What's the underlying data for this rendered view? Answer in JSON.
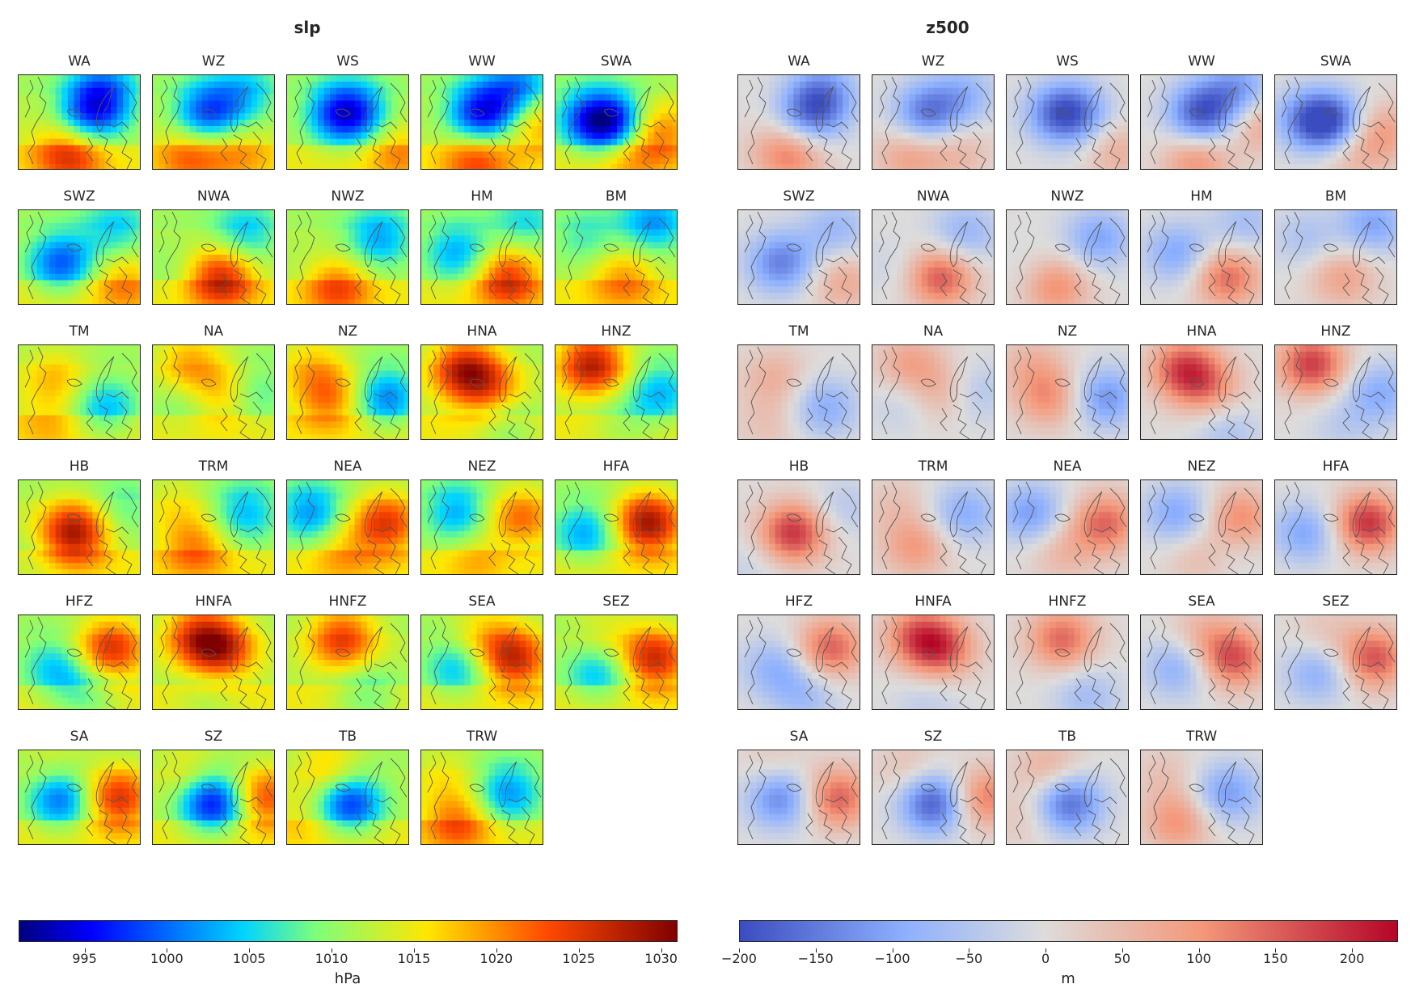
{
  "figure": {
    "left_title": "slp",
    "right_title": "z500"
  },
  "chart_data": [
    {
      "type": "heatmap",
      "title": "slp",
      "colormap": "jet",
      "colorbar": {
        "label": "hPa",
        "range": [
          991,
          1031
        ],
        "ticks": [
          995,
          1000,
          1005,
          1010,
          1015,
          1020,
          1025,
          1030
        ]
      },
      "panels": [
        "WA",
        "WZ",
        "WS",
        "WW",
        "SWA",
        "SWZ",
        "NWA",
        "NWZ",
        "HM",
        "BM",
        "TM",
        "NA",
        "NZ",
        "HNA",
        "HNZ",
        "HB",
        "TRM",
        "NEA",
        "NEZ",
        "HFA",
        "HFZ",
        "HNFA",
        "HNFZ",
        "SEA",
        "SEZ",
        "SA",
        "SZ",
        "TB",
        "TRW"
      ]
    },
    {
      "type": "heatmap",
      "title": "z500",
      "colormap": "coolwarm",
      "colorbar": {
        "label": "m",
        "range": [
          -200,
          230
        ],
        "ticks": [
          -200,
          -150,
          -100,
          -50,
          0,
          50,
          100,
          150,
          200
        ],
        "tick_labels": [
          "−200",
          "−150",
          "−100",
          "−50",
          "0",
          "50",
          "100",
          "150",
          "200"
        ]
      },
      "panels": [
        "WA",
        "WZ",
        "WS",
        "WW",
        "SWA",
        "SWZ",
        "NWA",
        "NWZ",
        "HM",
        "BM",
        "TM",
        "NA",
        "NZ",
        "HNA",
        "HNZ",
        "HB",
        "TRM",
        "NEA",
        "NEZ",
        "HFA",
        "HFZ",
        "HNFA",
        "HNFZ",
        "SEA",
        "SEZ",
        "SA",
        "SZ",
        "TB",
        "TRW"
      ]
    }
  ],
  "anomaly_patterns": {
    "WA": [
      [
        0.6,
        0.4,
        -0.8
      ],
      [
        0.7,
        0.15,
        -0.5
      ],
      [
        0.45,
        0.85,
        0.5
      ],
      [
        0.3,
        0.8,
        0.2
      ]
    ],
    "WZ": [
      [
        0.45,
        0.4,
        -0.8
      ],
      [
        0.75,
        0.2,
        -0.4
      ],
      [
        0.3,
        0.85,
        0.45
      ],
      [
        0.7,
        0.8,
        0.3
      ]
    ],
    "WS": [
      [
        0.55,
        0.4,
        -0.7
      ],
      [
        0.4,
        0.4,
        -0.5
      ],
      [
        0.9,
        0.8,
        0.35
      ]
    ],
    "WW": [
      [
        0.5,
        0.4,
        -1.0
      ],
      [
        0.8,
        0.15,
        -0.6
      ],
      [
        0.45,
        0.9,
        0.55
      ],
      [
        0.95,
        0.5,
        0.45
      ]
    ],
    "SWA": [
      [
        0.45,
        0.5,
        -1.0
      ],
      [
        0.25,
        0.45,
        -0.5
      ],
      [
        0.85,
        0.6,
        0.5
      ],
      [
        0.6,
        0.85,
        0.3
      ]
    ],
    "SWZ": [
      [
        0.35,
        0.55,
        -0.75
      ],
      [
        0.8,
        0.2,
        -0.4
      ],
      [
        0.85,
        0.75,
        0.4
      ]
    ],
    "NWA": [
      [
        0.55,
        0.7,
        0.85
      ],
      [
        0.75,
        0.25,
        -0.45
      ],
      [
        0.2,
        0.6,
        -0.15
      ]
    ],
    "NWZ": [
      [
        0.4,
        0.8,
        0.6
      ],
      [
        0.75,
        0.3,
        -0.55
      ],
      [
        0.2,
        0.65,
        -0.1
      ]
    ],
    "HM": [
      [
        0.7,
        0.7,
        0.75
      ],
      [
        0.3,
        0.45,
        -0.55
      ],
      [
        0.85,
        0.15,
        -0.35
      ]
    ],
    "BM": [
      [
        0.55,
        0.7,
        0.45
      ],
      [
        0.8,
        0.15,
        -0.55
      ],
      [
        0.25,
        0.3,
        -0.3
      ]
    ],
    "TM": [
      [
        0.3,
        0.35,
        0.35
      ],
      [
        0.7,
        0.65,
        -0.5
      ],
      [
        0.25,
        0.85,
        0.2
      ]
    ],
    "NA": [
      [
        0.3,
        0.2,
        0.45
      ],
      [
        0.6,
        0.5,
        0.45
      ],
      [
        0.8,
        0.5,
        -0.4
      ],
      [
        0.25,
        0.6,
        -0.2
      ]
    ],
    "NZ": [
      [
        0.35,
        0.55,
        0.55
      ],
      [
        0.8,
        0.55,
        -0.65
      ],
      [
        0.2,
        0.2,
        0.3
      ]
    ],
    "HNA": [
      [
        0.35,
        0.25,
        0.85
      ],
      [
        0.55,
        0.45,
        0.5
      ],
      [
        0.7,
        0.9,
        -0.3
      ]
    ],
    "HNZ": [
      [
        0.3,
        0.2,
        0.95
      ],
      [
        0.85,
        0.5,
        -0.5
      ],
      [
        0.55,
        0.85,
        -0.2
      ]
    ],
    "HB": [
      [
        0.45,
        0.55,
        1.0
      ],
      [
        0.85,
        0.3,
        -0.25
      ],
      [
        0.1,
        0.9,
        -0.15
      ]
    ],
    "TRM": [
      [
        0.75,
        0.35,
        -0.5
      ],
      [
        0.35,
        0.7,
        0.5
      ],
      [
        0.2,
        0.25,
        0.2
      ]
    ],
    "NEA": [
      [
        0.2,
        0.35,
        -0.6
      ],
      [
        0.8,
        0.45,
        0.75
      ],
      [
        0.45,
        0.75,
        0.3
      ]
    ],
    "NEZ": [
      [
        0.3,
        0.35,
        -0.55
      ],
      [
        0.8,
        0.4,
        0.6
      ],
      [
        0.5,
        0.8,
        0.35
      ],
      [
        0.65,
        0.75,
        -0.2
      ]
    ],
    "HFA": [
      [
        0.75,
        0.45,
        1.0
      ],
      [
        0.25,
        0.55,
        -0.55
      ]
    ],
    "HFZ": [
      [
        0.75,
        0.35,
        0.8
      ],
      [
        0.3,
        0.55,
        -0.45
      ],
      [
        0.55,
        0.85,
        -0.35
      ]
    ],
    "HNFA": [
      [
        0.55,
        0.35,
        0.85
      ],
      [
        0.35,
        0.2,
        0.6
      ],
      [
        0.45,
        0.9,
        -0.2
      ]
    ],
    "HNFZ": [
      [
        0.45,
        0.25,
        0.75
      ],
      [
        0.65,
        0.85,
        -0.35
      ]
    ],
    "SEA": [
      [
        0.75,
        0.45,
        0.85
      ],
      [
        0.3,
        0.55,
        -0.5
      ],
      [
        0.5,
        0.2,
        0.3
      ]
    ],
    "SEZ": [
      [
        0.8,
        0.45,
        0.85
      ],
      [
        0.35,
        0.6,
        -0.5
      ],
      [
        0.4,
        0.2,
        0.2
      ]
    ],
    "SA": [
      [
        0.8,
        0.5,
        0.8
      ],
      [
        0.35,
        0.5,
        -0.75
      ],
      [
        0.3,
        0.15,
        0.2
      ]
    ],
    "SZ": [
      [
        0.5,
        0.55,
        -1.0
      ],
      [
        0.9,
        0.5,
        0.7
      ],
      [
        0.3,
        0.2,
        0.25
      ]
    ],
    "TB": [
      [
        0.5,
        0.55,
        -0.9
      ],
      [
        0.35,
        0.2,
        0.4
      ],
      [
        0.15,
        0.7,
        0.2
      ]
    ],
    "TRW": [
      [
        0.7,
        0.45,
        -0.6
      ],
      [
        0.3,
        0.75,
        0.55
      ],
      [
        0.2,
        0.25,
        0.2
      ]
    ]
  }
}
